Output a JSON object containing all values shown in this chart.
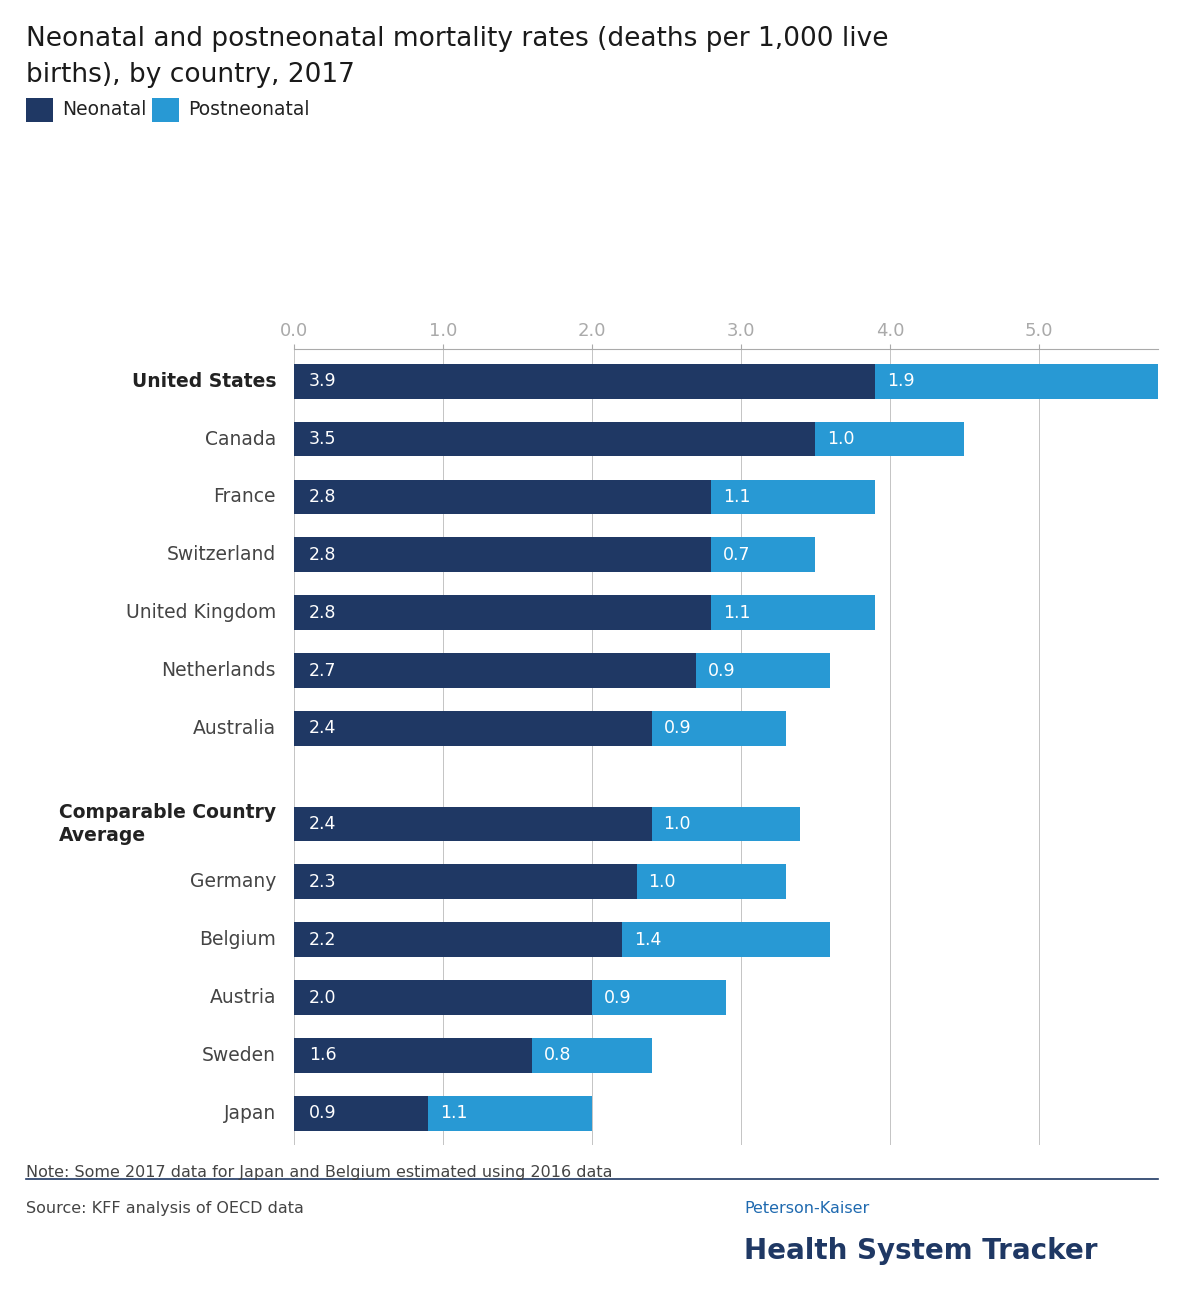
{
  "title_line1": "Neonatal and postneonatal mortality rates (deaths per 1,000 live",
  "title_line2": "births), by country, 2017",
  "legend_neonatal": "Neonatal",
  "legend_postneonatal": "Postneonatal",
  "countries": [
    "United States",
    "Canada",
    "France",
    "Switzerland",
    "United Kingdom",
    "Netherlands",
    "Australia",
    "Comparable Country\nAverage",
    "Germany",
    "Belgium",
    "Austria",
    "Sweden",
    "Japan"
  ],
  "bold_indices": [
    0,
    7
  ],
  "neonatal": [
    3.9,
    3.5,
    2.8,
    2.8,
    2.8,
    2.7,
    2.4,
    2.4,
    2.3,
    2.2,
    2.0,
    1.6,
    0.9
  ],
  "postneonatal": [
    1.9,
    1.0,
    1.1,
    0.7,
    1.1,
    0.9,
    0.9,
    1.0,
    1.0,
    1.4,
    0.9,
    0.8,
    1.1
  ],
  "neonatal_color": "#1f3864",
  "postneonatal_color": "#2899d4",
  "axis_color": "#aaaaaa",
  "text_color": "#444444",
  "note_text": "Note: Some 2017 data for Japan and Belgium estimated using 2016 data",
  "source_text": "Source: KFF analysis of OECD data",
  "brand_line1": "Peterson-Kaiser",
  "brand_line2": "Health System Tracker",
  "brand_color1": "#1f6ab0",
  "brand_color2": "#1f3864",
  "xlim": [
    0,
    5.8
  ],
  "xticks": [
    0.0,
    1.0,
    2.0,
    3.0,
    4.0,
    5.0
  ],
  "bar_height": 0.6,
  "figsize": [
    12.0,
    12.94
  ],
  "dpi": 100
}
